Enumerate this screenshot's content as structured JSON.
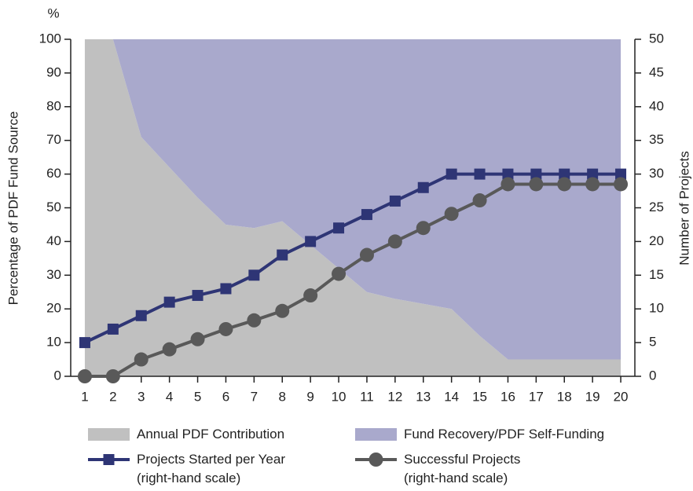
{
  "chart_data": {
    "type": "line",
    "y_unit": "%",
    "ylabel": "Percentage of PDF Fund Source",
    "y2label": "Number of Projects",
    "x": [
      1,
      2,
      3,
      4,
      5,
      6,
      7,
      8,
      9,
      10,
      11,
      12,
      13,
      14,
      15,
      16,
      17,
      18,
      19,
      20
    ],
    "xlim": [
      0.5,
      20.5
    ],
    "xticks": [
      1,
      2,
      3,
      4,
      5,
      6,
      7,
      8,
      9,
      10,
      11,
      12,
      13,
      14,
      15,
      16,
      17,
      18,
      19,
      20
    ],
    "ylim": [
      0,
      100
    ],
    "yticks": [
      0,
      10,
      20,
      30,
      40,
      50,
      60,
      70,
      80,
      90,
      100
    ],
    "y2lim": [
      0,
      50
    ],
    "y2ticks": [
      0,
      5,
      10,
      15,
      20,
      25,
      30,
      35,
      40,
      45,
      50
    ],
    "series": [
      {
        "name": "Annual PDF Contribution",
        "type": "area",
        "color": "#c0c0c0",
        "values": [
          100,
          100,
          71,
          62,
          53,
          45,
          44,
          46,
          39,
          32,
          25,
          23,
          21.5,
          20,
          12,
          5,
          5,
          5,
          5,
          5
        ]
      },
      {
        "name": "Fund Recovery/PDF Self-Funding",
        "type": "area",
        "color": "#a9a9cc",
        "values": [
          0,
          0,
          29,
          38,
          47,
          55,
          56,
          54,
          61,
          68,
          75,
          77,
          78.5,
          80,
          88,
          95,
          95,
          95,
          95,
          95
        ]
      },
      {
        "name": "Projects Started per Year\n(right-hand scale)",
        "type": "line",
        "marker": "square",
        "axis": "y2",
        "color": "#2e3575",
        "values": [
          5,
          7,
          9,
          11,
          12,
          13,
          15,
          18,
          20,
          22,
          24,
          26,
          28,
          30,
          30,
          30,
          30,
          30,
          30,
          30
        ]
      },
      {
        "name": "Successful Projects\n(right-hand scale)",
        "type": "line",
        "marker": "circle",
        "axis": "y2",
        "color": "#595959",
        "values": [
          0,
          0,
          2.5,
          4,
          5.5,
          7,
          8.3,
          9.7,
          12,
          15.2,
          18,
          20,
          22,
          24.1,
          26.1,
          28.5,
          28.5,
          28.5,
          28.5,
          28.5
        ]
      }
    ]
  }
}
